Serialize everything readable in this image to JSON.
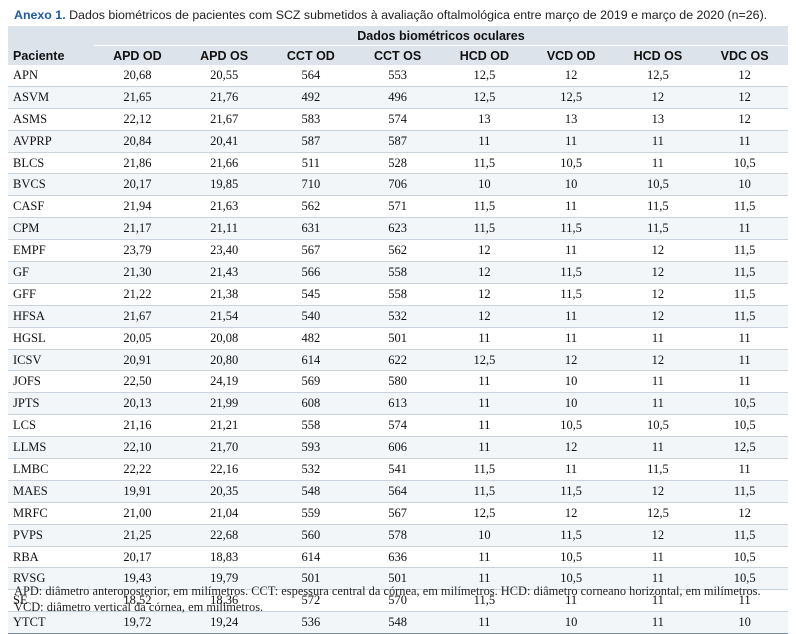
{
  "caption": {
    "lead": "Anexo 1.",
    "text": " Dados biométricos de pacientes com SCZ submetidos à avaliação oftalmológica entre março de 2019 e março de 2020 (n=26)."
  },
  "table": {
    "group_header": "Dados biométricos oculares",
    "patient_header": "Paciente",
    "columns": [
      "APD OD",
      "APD OS",
      "CCT OD",
      "CCT OS",
      "HCD OD",
      "VCD OD",
      "HCD OS",
      "VDC OS"
    ],
    "rows": [
      [
        "APN",
        "20,68",
        "20,55",
        "564",
        "553",
        "12,5",
        "12",
        "12,5",
        "12"
      ],
      [
        "ASVM",
        "21,65",
        "21,76",
        "492",
        "496",
        "12,5",
        "12,5",
        "12",
        "12"
      ],
      [
        "ASMS",
        "22,12",
        "21,67",
        "583",
        "574",
        "13",
        "13",
        "13",
        "12"
      ],
      [
        "AVPRP",
        "20,84",
        "20,41",
        "587",
        "587",
        "11",
        "11",
        "11",
        "11"
      ],
      [
        "BLCS",
        "21,86",
        "21,66",
        "511",
        "528",
        "11,5",
        "10,5",
        "11",
        "10,5"
      ],
      [
        "BVCS",
        "20,17",
        "19,85",
        "710",
        "706",
        "10",
        "10",
        "10,5",
        "10"
      ],
      [
        "CASF",
        "21,94",
        "21,63",
        "562",
        "571",
        "11,5",
        "11",
        "11,5",
        "11,5"
      ],
      [
        "CPM",
        "21,17",
        "21,11",
        "631",
        "623",
        "11,5",
        "11,5",
        "11,5",
        "11"
      ],
      [
        "EMPF",
        "23,79",
        "23,40",
        "567",
        "562",
        "12",
        "11",
        "12",
        "11,5"
      ],
      [
        "GF",
        "21,30",
        "21,43",
        "566",
        "558",
        "12",
        "11,5",
        "12",
        "11,5"
      ],
      [
        "GFF",
        "21,22",
        "21,38",
        "545",
        "558",
        "12",
        "11,5",
        "12",
        "11,5"
      ],
      [
        "HFSA",
        "21,67",
        "21,54",
        "540",
        "532",
        "12",
        "11",
        "12",
        "11,5"
      ],
      [
        "HGSL",
        "20,05",
        "20,08",
        "482",
        "501",
        "11",
        "11",
        "11",
        "11"
      ],
      [
        "ICSV",
        "20,91",
        "20,80",
        "614",
        "622",
        "12,5",
        "12",
        "12",
        "11"
      ],
      [
        "JOFS",
        "22,50",
        "24,19",
        "569",
        "580",
        "11",
        "10",
        "11",
        "11"
      ],
      [
        "JPTS",
        "20,13",
        "21,99",
        "608",
        "613",
        "11",
        "10",
        "11",
        "10,5"
      ],
      [
        "LCS",
        "21,16",
        "21,21",
        "558",
        "574",
        "11",
        "10,5",
        "10,5",
        "10,5"
      ],
      [
        "LLMS",
        "22,10",
        "21,70",
        "593",
        "606",
        "11",
        "12",
        "11",
        "12,5"
      ],
      [
        "LMBC",
        "22,22",
        "22,16",
        "532",
        "541",
        "11,5",
        "11",
        "11,5",
        "11"
      ],
      [
        "MAES",
        "19,91",
        "20,35",
        "548",
        "564",
        "11,5",
        "11,5",
        "12",
        "11,5"
      ],
      [
        "MRFC",
        "21,00",
        "21,04",
        "559",
        "567",
        "12,5",
        "12",
        "12,5",
        "12"
      ],
      [
        "PVPS",
        "21,25",
        "22,68",
        "560",
        "578",
        "10",
        "11,5",
        "12",
        "11,5"
      ],
      [
        "RBA",
        "20,17",
        "18,83",
        "614",
        "636",
        "11",
        "10,5",
        "11",
        "10,5"
      ],
      [
        "RVSG",
        "19,43",
        "19,79",
        "501",
        "501",
        "11",
        "10,5",
        "11",
        "10,5"
      ],
      [
        "SE",
        "18,52",
        "18,36",
        "572",
        "570",
        "11,5",
        "11",
        "11",
        "11"
      ],
      [
        "YTCT",
        "19,72",
        "19,24",
        "536",
        "548",
        "11",
        "10",
        "11",
        "10"
      ]
    ]
  },
  "footnote": "APD: diâmetro anteroposterior, em milímetros. CCT: espessura central da córnea, em milímetros. HCD: diâmetro corneano horizontal, em milímetros. VCD: diâmetro vertical da córnea, em milímetros."
}
